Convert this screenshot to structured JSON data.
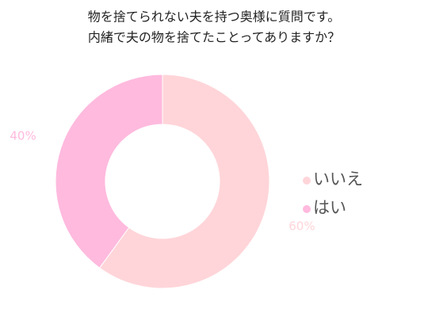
{
  "chart_data": {
    "type": "pie",
    "title": [
      "物を捨てられない夫を持つ奥様に質問です。",
      "内緒で夫の物を捨てたことってありますか？"
    ],
    "categories": [
      "いいえ",
      "はい"
    ],
    "values": [
      60,
      40
    ],
    "value_labels": [
      "60%",
      "40%"
    ],
    "colors": [
      "#ffd5d9",
      "#ffbade"
    ],
    "legend": "right"
  }
}
